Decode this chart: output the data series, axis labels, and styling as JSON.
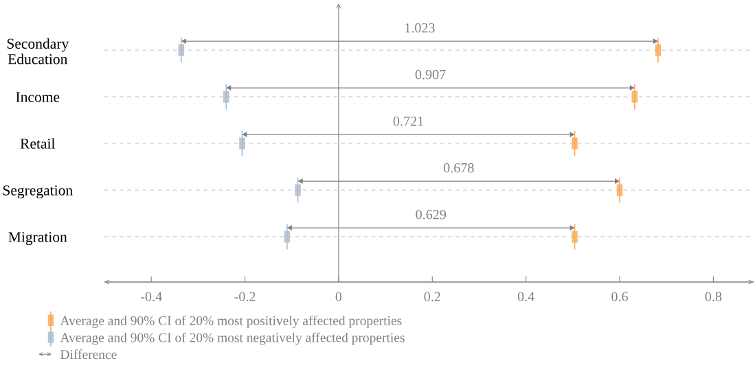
{
  "chart_data": {
    "type": "scatter",
    "orientation": "horizontal",
    "categories": [
      "Secondary\nEducation",
      "Income",
      "Retail",
      "Segregation",
      "Migration"
    ],
    "series": [
      {
        "name": "Average and 90% CI of 20% most positively affected properties",
        "color": "#fbaa5c",
        "values": [
          0.682,
          0.632,
          0.504,
          0.6,
          0.504
        ]
      },
      {
        "name": "Average and 90% CI of 20% most negatively affected properties",
        "color": "#aebdcd",
        "values": [
          -0.336,
          -0.24,
          -0.206,
          -0.087,
          -0.11
        ]
      }
    ],
    "annotations": [
      "1.023",
      "0.907",
      "0.721",
      "0.678",
      "0.629",
      "Difference"
    ],
    "xlim": [
      -0.5,
      0.886
    ],
    "xticks": [
      -0.4,
      -0.2,
      0,
      0.2,
      0.4,
      0.6,
      0.8
    ],
    "grid": "y",
    "legend": "bottom"
  }
}
